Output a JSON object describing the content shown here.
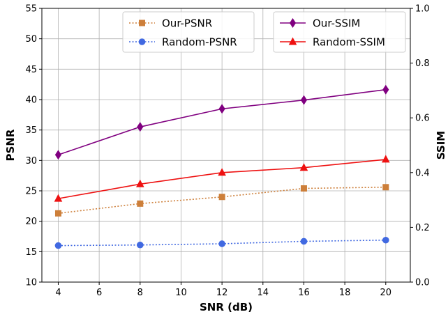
{
  "chart_data": {
    "type": "line",
    "x": [
      4,
      8,
      12,
      16,
      20
    ],
    "xlabel": "SNR (dB)",
    "ylabel_left": "PSNR",
    "ylabel_right": "SSIM",
    "xlim": [
      3.2,
      21.2
    ],
    "ylim_left": [
      10,
      55
    ],
    "ylim_right": [
      0.0,
      1.0
    ],
    "xticks": [
      4,
      6,
      8,
      10,
      12,
      14,
      16,
      18,
      20
    ],
    "yticks_left": [
      10,
      15,
      20,
      25,
      30,
      35,
      40,
      45,
      50,
      55
    ],
    "yticks_right": [
      "0.0",
      "0.2",
      "0.4",
      "0.6",
      "0.8",
      "1.0"
    ],
    "grid": true,
    "series": [
      {
        "name": "Our-PSNR",
        "axis": "left",
        "values": [
          21.3,
          22.9,
          24.0,
          25.4,
          25.6
        ],
        "color": "#cd7f3a",
        "marker": "square",
        "line": "dotted"
      },
      {
        "name": "Random-PSNR",
        "axis": "left",
        "values": [
          16.0,
          16.1,
          16.3,
          16.7,
          16.9
        ],
        "color": "#4169e1",
        "marker": "circle",
        "line": "dotted"
      },
      {
        "name": "Our-SSIM",
        "axis": "right",
        "values": [
          0.465,
          0.567,
          0.633,
          0.665,
          0.703
        ],
        "color": "#800080",
        "marker": "diamond",
        "line": "solid"
      },
      {
        "name": "Random-SSIM",
        "axis": "right",
        "values": [
          0.305,
          0.358,
          0.4,
          0.418,
          0.448
        ],
        "color": "#ee1111",
        "marker": "triangle",
        "line": "solid"
      }
    ],
    "legends": [
      {
        "placement": "top-center",
        "entries": [
          "Our-PSNR",
          "Random-PSNR"
        ]
      },
      {
        "placement": "top-right",
        "entries": [
          "Our-SSIM",
          "Random-SSIM"
        ]
      }
    ]
  }
}
